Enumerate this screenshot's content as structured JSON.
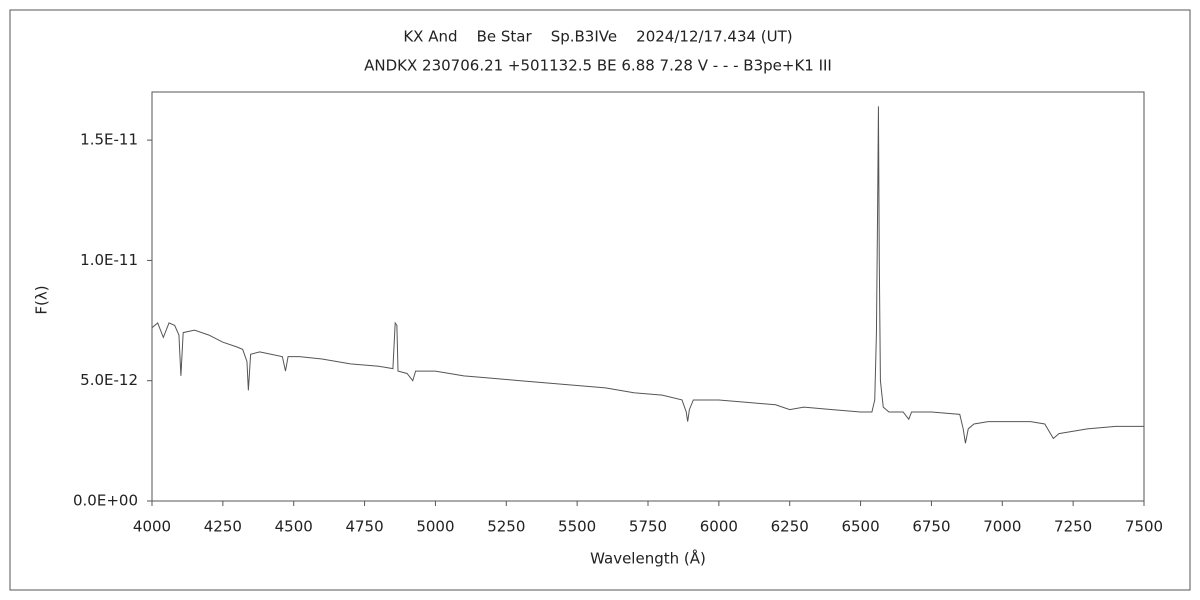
{
  "chart_data": {
    "type": "line",
    "title": "KX And    Be Star    Sp.B3IVe    2024/12/17.434 (UT)",
    "subtitle": "ANDKX 230706.21 +501132.5 BE 6.88 7.28 V - - - B3pe+K1 III",
    "x_label": "Wavelength (Å)",
    "y_label": "F(λ)",
    "xlim": [
      4000,
      7500
    ],
    "xticks": [
      4000,
      4250,
      4500,
      4750,
      5000,
      5250,
      5500,
      5750,
      6000,
      6250,
      6500,
      6750,
      7000,
      7250,
      7500
    ],
    "ylim": [
      0,
      1.7e-11
    ],
    "yticks": [
      {
        "value": 0,
        "label": "0.0E+00"
      },
      {
        "value": 5e-12,
        "label": "5.0E-12"
      },
      {
        "value": 1e-11,
        "label": "1.0E-11"
      },
      {
        "value": 1.5e-11,
        "label": "1.5E-11"
      }
    ],
    "grid": false,
    "x": [
      4000,
      4020,
      4040,
      4060,
      4080,
      4095,
      4102,
      4110,
      4150,
      4200,
      4250,
      4300,
      4320,
      4335,
      4340,
      4348,
      4380,
      4420,
      4460,
      4471,
      4480,
      4520,
      4600,
      4700,
      4800,
      4850,
      4858,
      4864,
      4868,
      4900,
      4920,
      4930,
      5000,
      5100,
      5200,
      5300,
      5400,
      5500,
      5600,
      5700,
      5800,
      5870,
      5885,
      5890,
      5896,
      5910,
      6000,
      6100,
      6200,
      6250,
      6300,
      6400,
      6500,
      6540,
      6550,
      6556,
      6560,
      6563,
      6566,
      6570,
      6580,
      6600,
      6650,
      6670,
      6680,
      6750,
      6850,
      6862,
      6870,
      6880,
      6900,
      6950,
      7000,
      7100,
      7150,
      7170,
      7180,
      7200,
      7250,
      7300,
      7400,
      7500
    ],
    "series": [
      {
        "color": "#555555",
        "values": [
          7.2e-12,
          7.4e-12,
          6.8e-12,
          7.4e-12,
          7.3e-12,
          6.9e-12,
          5.2e-12,
          7e-12,
          7.1e-12,
          6.9e-12,
          6.6e-12,
          6.4e-12,
          6.3e-12,
          5.8e-12,
          4.6e-12,
          6.1e-12,
          6.2e-12,
          6.1e-12,
          6e-12,
          5.4e-12,
          6e-12,
          6e-12,
          5.9e-12,
          5.7e-12,
          5.6e-12,
          5.5e-12,
          7.4e-12,
          7.3e-12,
          5.4e-12,
          5.3e-12,
          5e-12,
          5.4e-12,
          5.4e-12,
          5.2e-12,
          5.1e-12,
          5e-12,
          4.9e-12,
          4.8e-12,
          4.7e-12,
          4.5e-12,
          4.4e-12,
          4.2e-12,
          3.7e-12,
          3.3e-12,
          3.8e-12,
          4.2e-12,
          4.2e-12,
          4.1e-12,
          4e-12,
          3.8e-12,
          3.9e-12,
          3.8e-12,
          3.7e-12,
          3.7e-12,
          4.2e-12,
          7e-12,
          1.2e-11,
          1.64e-11,
          1e-11,
          5e-12,
          3.9e-12,
          3.7e-12,
          3.7e-12,
          3.4e-12,
          3.7e-12,
          3.7e-12,
          3.6e-12,
          3e-12,
          2.4e-12,
          3e-12,
          3.2e-12,
          3.3e-12,
          3.3e-12,
          3.3e-12,
          3.2e-12,
          2.8e-12,
          2.6e-12,
          2.8e-12,
          2.9e-12,
          3e-12,
          3.1e-12,
          3.1e-12
        ]
      }
    ]
  }
}
